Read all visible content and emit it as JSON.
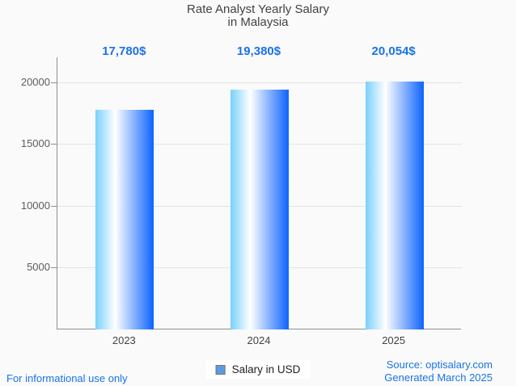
{
  "title": {
    "line1": "Rate Analyst Yearly Salary",
    "line2": "in Malaysia"
  },
  "chart_data": {
    "type": "bar",
    "title": "Rate Analyst Yearly Salary in Malaysia",
    "categories": [
      "2023",
      "2024",
      "2025"
    ],
    "values": [
      17780,
      19380,
      20054
    ],
    "value_labels": [
      "17,780$",
      "19,380$",
      "20,054$"
    ],
    "series_name": "Salary in USD",
    "xlabel": "",
    "ylabel": "",
    "ylim": [
      0,
      22000
    ],
    "yticks": [
      5000,
      10000,
      15000,
      20000
    ],
    "grid": true,
    "legend_position": "bottom",
    "bar_gradient": [
      "#79d1fb",
      "#ffffff",
      "#0d63fe"
    ],
    "value_label_color": "#1a73e8"
  },
  "legend": {
    "label": "Salary in USD",
    "swatch_color": "#5b9ae4"
  },
  "footer": {
    "left": "For informational use only",
    "source": "Source: optisalary.com",
    "generated": "Generated March 2025"
  },
  "colors": {
    "background": "#fafafa",
    "title_text": "#424242",
    "axis_line": "#8f8f8f",
    "gridline": "#e4e4e4",
    "accent_blue": "#1a73e8"
  }
}
